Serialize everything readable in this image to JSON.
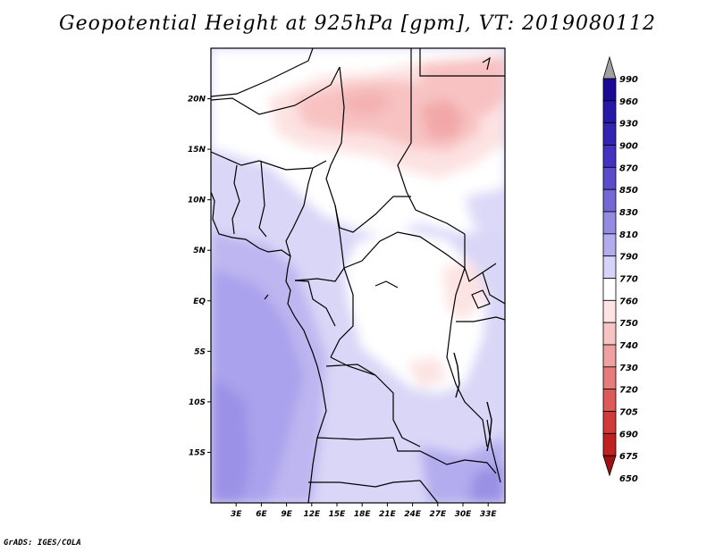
{
  "title": "Geopotential Height at 925hPa [gpm], VT: 2019080112",
  "credit": "GrADS: IGES/COLA",
  "map": {
    "variable": "Geopotential Height",
    "level": "925hPa",
    "units": "gpm",
    "valid_time": "2019080112",
    "lat_range": [
      -20,
      25
    ],
    "lon_range": [
      0,
      35
    ],
    "lat_labels": [
      "20N",
      "15N",
      "10N",
      "5N",
      "EQ",
      "5S",
      "10S",
      "15S"
    ],
    "lat_values": [
      20,
      15,
      10,
      5,
      0,
      -5,
      -10,
      -15
    ],
    "lon_labels": [
      "3E",
      "6E",
      "9E",
      "12E",
      "15E",
      "18E",
      "21E",
      "24E",
      "27E",
      "30E",
      "33E"
    ],
    "lon_values": [
      3,
      6,
      9,
      12,
      15,
      18,
      21,
      24,
      27,
      30,
      33
    ]
  },
  "colorbar": {
    "levels": [
      "990",
      "960",
      "930",
      "900",
      "870",
      "850",
      "830",
      "810",
      "790",
      "770",
      "760",
      "750",
      "740",
      "730",
      "720",
      "705",
      "690",
      "675",
      "650"
    ],
    "colors": [
      "#a0a0a0",
      "#1a0a96",
      "#2618a8",
      "#3424b4",
      "#4332c0",
      "#5a4ccc",
      "#7468d6",
      "#938ae2",
      "#b3acee",
      "#d6d3f8",
      "#ffffff",
      "#fde3e3",
      "#f8c3c3",
      "#f0a0a0",
      "#e87c7c",
      "#de5a5a",
      "#d23a3a",
      "#c02222",
      "#a01010"
    ]
  }
}
